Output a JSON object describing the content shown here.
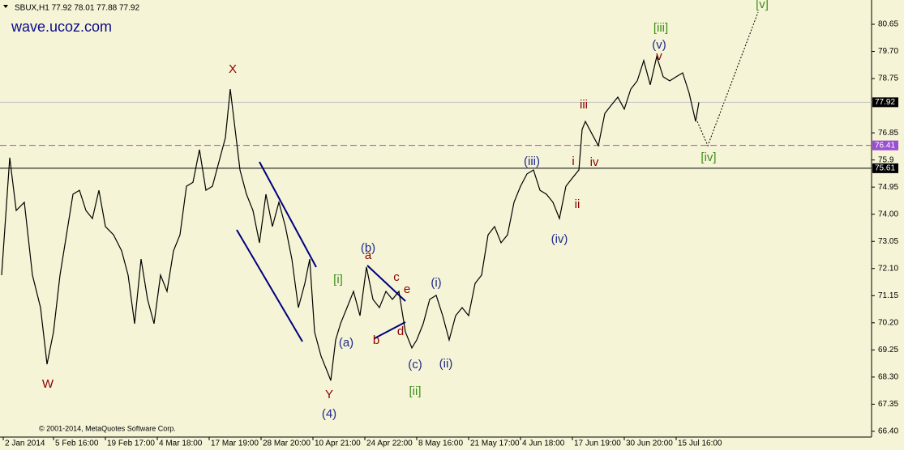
{
  "chart_data": {
    "type": "line",
    "title": "SBUX,H1  77.92 78.01 77.88 77.92",
    "watermark": "wave.ucoz.com",
    "copyright": "© 2001-2014, MetaQuotes Software Corp.",
    "color": "#000000",
    "x": [
      1,
      6,
      10,
      15,
      20,
      25,
      29,
      33,
      37,
      41,
      45,
      49,
      53,
      57,
      61,
      65,
      70,
      75,
      79,
      83,
      87,
      91,
      95,
      99,
      103,
      107,
      111,
      115,
      119,
      123,
      127,
      131,
      135,
      139,
      142,
      145,
      148,
      152,
      156,
      160,
      164,
      168,
      172,
      176,
      180,
      184,
      188,
      191,
      194,
      198,
      202,
      204,
      207,
      210,
      214,
      218,
      222,
      226,
      230,
      234,
      238,
      242,
      246,
      250,
      254,
      257,
      261,
      265,
      269,
      273,
      277,
      281,
      285,
      289,
      293,
      297,
      301,
      305,
      309,
      313,
      317,
      321,
      325,
      329,
      333,
      337,
      341,
      345,
      349,
      353,
      357,
      359,
      361,
      365,
      369,
      373,
      377,
      381,
      385,
      389,
      393,
      397,
      401,
      405,
      409,
      413,
      417,
      421,
      425,
      429,
      431
    ],
    "values": [
      71.87,
      75.98,
      74.13,
      74.42,
      71.87,
      70.73,
      68.75,
      69.88,
      71.87,
      73.28,
      74.7,
      74.84,
      74.13,
      73.85,
      74.84,
      73.57,
      73.28,
      72.72,
      71.87,
      70.17,
      72.43,
      71.02,
      70.17,
      71.87,
      71.3,
      72.72,
      73.28,
      74.98,
      75.12,
      76.26,
      74.84,
      74.98,
      75.83,
      76.68,
      78.38,
      76.97,
      75.55,
      74.7,
      74.13,
      73.0,
      74.7,
      73.57,
      74.42,
      73.57,
      72.43,
      70.73,
      71.58,
      72.43,
      69.88,
      69.03,
      68.47,
      68.18,
      69.6,
      70.17,
      70.73,
      71.3,
      70.45,
      72.15,
      71.02,
      70.73,
      71.3,
      71.02,
      71.3,
      69.88,
      69.32,
      69.6,
      70.17,
      71.02,
      71.16,
      70.45,
      69.6,
      70.45,
      70.73,
      70.45,
      71.58,
      71.87,
      73.28,
      73.57,
      73.0,
      73.28,
      74.42,
      74.98,
      75.41,
      75.55,
      74.84,
      74.7,
      74.42,
      73.85,
      74.98,
      75.27,
      75.55,
      76.97,
      77.25,
      76.82,
      76.4,
      77.53,
      77.82,
      78.1,
      77.68,
      78.38,
      78.67,
      79.38,
      78.53,
      79.52,
      78.81,
      78.67,
      78.81,
      78.95,
      78.24,
      77.25,
      77.92
    ],
    "xlim": [
      0,
      537.5
    ],
    "xticks": [
      {
        "value": 2,
        "label": "2 Jan 2014"
      },
      {
        "value": 33,
        "label": "5 Feb 16:00"
      },
      {
        "value": 65,
        "label": "19 Feb 17:00"
      },
      {
        "value": 97,
        "label": "4 Mar 18:00"
      },
      {
        "value": 129,
        "label": "17 Mar 19:00"
      },
      {
        "value": 161,
        "label": "28 Mar 20:00"
      },
      {
        "value": 193,
        "label": "10 Apr 21:00"
      },
      {
        "value": 225,
        "label": "24 Apr 22:00"
      },
      {
        "value": 257,
        "label": "8 May 16:00"
      },
      {
        "value": 289,
        "label": "21 May 17:00"
      },
      {
        "value": 321,
        "label": "4 Jun 18:00"
      },
      {
        "value": 353,
        "label": "17 Jun 19:00"
      },
      {
        "value": 385,
        "label": "30 Jun 20:00"
      },
      {
        "value": 417,
        "label": "15 Jul 16:00"
      }
    ],
    "ylim": [
      66.2,
      81.5
    ],
    "yticks": [
      80.65,
      {
        "value": 79.7,
        "label": "79.70"
      },
      78.75,
      76.85,
      75.9,
      74.95,
      {
        "value": 74,
        "label": "74.00"
      },
      73.05,
      {
        "value": 72.1,
        "label": "72.10"
      },
      71.15,
      {
        "value": 70.2,
        "label": "70.20"
      },
      69.25,
      {
        "value": 68.3,
        "label": "68.30"
      },
      67.35,
      {
        "value": 66.4,
        "label": "66.40"
      }
    ],
    "hlines": [
      {
        "value": 77.92,
        "color": "#c0c0c0",
        "style": "solid",
        "label_bg": "#000000"
      },
      {
        "value": 76.41,
        "color": "#9a4fd0",
        "style": "dashed",
        "label_bg": "#9a4fd0"
      },
      {
        "value": 75.61,
        "color": "#000000",
        "style": "solid",
        "label_bg": "#000000"
      }
    ],
    "annotations": [
      "W",
      "X",
      "Y",
      "(4)",
      "[i]",
      "(a)",
      "(b)",
      "a",
      "b",
      "c",
      "e",
      "d",
      "(c)",
      "[ii]",
      "(i)",
      "(ii)",
      "(iii)",
      "i",
      "ii",
      "(iv)",
      "iii",
      "iv",
      "[iii]",
      "(v)",
      "v",
      "[iv]",
      "[v]"
    ]
  }
}
